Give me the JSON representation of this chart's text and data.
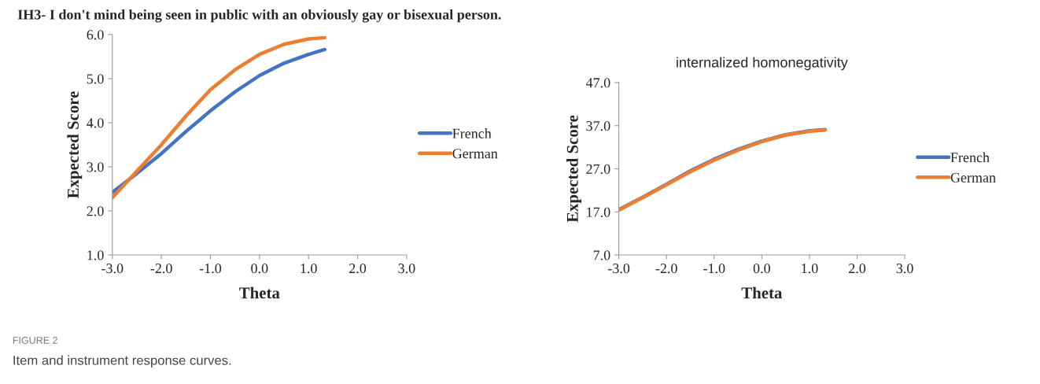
{
  "chart_data": [
    {
      "type": "line",
      "title": "IH3- I don't mind being seen in public with an obviously gay or bisexual person.",
      "xlabel": "Theta",
      "ylabel": "Expected Score",
      "x": [
        -3.0,
        -2.5,
        -2.0,
        -1.5,
        -1.0,
        -0.5,
        0.0,
        0.5,
        1.0,
        1.33
      ],
      "series": [
        {
          "name": "French",
          "color": "#4472c4",
          "values": [
            2.42,
            2.85,
            3.3,
            3.8,
            4.27,
            4.7,
            5.07,
            5.35,
            5.55,
            5.66
          ]
        },
        {
          "name": "German",
          "color": "#ed7d31",
          "values": [
            2.3,
            2.9,
            3.5,
            4.15,
            4.75,
            5.2,
            5.55,
            5.78,
            5.9,
            5.93
          ]
        }
      ],
      "xlim": [
        -3.0,
        3.0
      ],
      "xticks": [
        {
          "value": -3,
          "label": "-3.0"
        },
        {
          "value": -2,
          "label": "-2.0"
        },
        {
          "value": -1,
          "label": "-1.0"
        },
        {
          "value": 0,
          "label": "0.0"
        },
        {
          "value": 1,
          "label": "1.0"
        },
        {
          "value": 2,
          "label": "2.0"
        },
        {
          "value": 3,
          "label": "3.0"
        }
      ],
      "ylim": [
        1.0,
        6.0
      ],
      "yticks": [
        {
          "value": 1,
          "label": "1.0"
        },
        {
          "value": 2,
          "label": "2.0"
        },
        {
          "value": 3,
          "label": "3.0"
        },
        {
          "value": 4,
          "label": "4.0"
        },
        {
          "value": 5,
          "label": "5.0"
        },
        {
          "value": 6,
          "label": "6.0"
        }
      ],
      "grid": false,
      "legend": "right",
      "marker": "none",
      "line_style": "solid",
      "annotations": [
        "FIGURE 2",
        "Item and instrument response curves."
      ]
    },
    {
      "type": "line",
      "title": "internalized homonegativity",
      "xlabel": "Theta",
      "ylabel": "Expected Score",
      "x": [
        -3.0,
        -2.5,
        -2.0,
        -1.5,
        -1.0,
        -0.5,
        0.0,
        0.5,
        1.0,
        1.33
      ],
      "series": [
        {
          "name": "French",
          "color": "#4472c4",
          "values": [
            17.5,
            20.4,
            23.4,
            26.5,
            29.2,
            31.5,
            33.4,
            34.9,
            35.8,
            36.1
          ]
        },
        {
          "name": "German",
          "color": "#ed7d31",
          "values": [
            17.4,
            20.3,
            23.3,
            26.3,
            29.0,
            31.3,
            33.3,
            34.8,
            35.7,
            36.0
          ]
        }
      ],
      "xlim": [
        -3.0,
        3.0
      ],
      "xticks": [
        {
          "value": -3,
          "label": "-3.0"
        },
        {
          "value": -2,
          "label": "-2.0"
        },
        {
          "value": -1,
          "label": "-1.0"
        },
        {
          "value": 0,
          "label": "0.0"
        },
        {
          "value": 1,
          "label": "1.0"
        },
        {
          "value": 2,
          "label": "2.0"
        },
        {
          "value": 3,
          "label": "3.0"
        }
      ],
      "ylim": [
        7.0,
        47.0
      ],
      "yticks": [
        {
          "value": 7,
          "label": "7.0"
        },
        {
          "value": 17,
          "label": "17.0"
        },
        {
          "value": 27,
          "label": "27.0"
        },
        {
          "value": 37,
          "label": "37.0"
        },
        {
          "value": 47,
          "label": "47.0"
        }
      ],
      "grid": false,
      "legend": "right",
      "marker": "none",
      "line_style": "solid"
    }
  ]
}
